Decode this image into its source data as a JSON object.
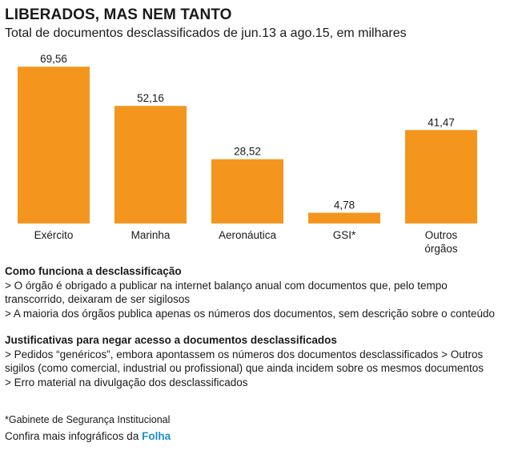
{
  "header": {
    "title": "LIBERADOS, MAS NEM TANTO",
    "subtitle": "Total de documentos desclassificados de jun.13 a ago.15, em milhares"
  },
  "chart_data": {
    "type": "bar",
    "categories": [
      "Exército",
      "Marinha",
      "Aeronáutica",
      "GSI*",
      "Outros órgãos"
    ],
    "category_lines": [
      [
        "Exército"
      ],
      [
        "Marinha"
      ],
      [
        "Aeronáutica"
      ],
      [
        "GSI*"
      ],
      [
        "Outros",
        "órgãos"
      ]
    ],
    "values": [
      69.56,
      52.16,
      28.52,
      4.78,
      41.47
    ],
    "value_labels": [
      "69,56",
      "52,16",
      "28,52",
      "4,78",
      "41,47"
    ],
    "bar_color": "#f4961e",
    "ylim": [
      0,
      70
    ],
    "grid": false
  },
  "notes": {
    "section1": {
      "heading": "Como funciona a desclassificação",
      "line1": "> O órgão é obrigado a publicar na internet balanço anual com documentos que, pelo tempo transcorrido, deixaram de ser sigilosos",
      "line2": "> A maioria dos órgãos publica apenas os números dos documentos, sem descrição sobre o conteúdo"
    },
    "section2": {
      "heading": "Justificativas para negar acesso a documentos desclassificados",
      "line1": "> Pedidos “genéricos”, embora apontassem os números dos documentos desclassificados > Outros sigilos (como comercial, industrial ou profissional) que ainda incidem sobre os mesmos documentos",
      "line2": "> Erro material na divulgação dos desclassificados"
    }
  },
  "footnote": "*Gabinete de Segurança Institucional",
  "credit": {
    "text": "Confira mais infográficos da ",
    "brand": "Folha",
    "brand_color": "#1a8fd0"
  }
}
